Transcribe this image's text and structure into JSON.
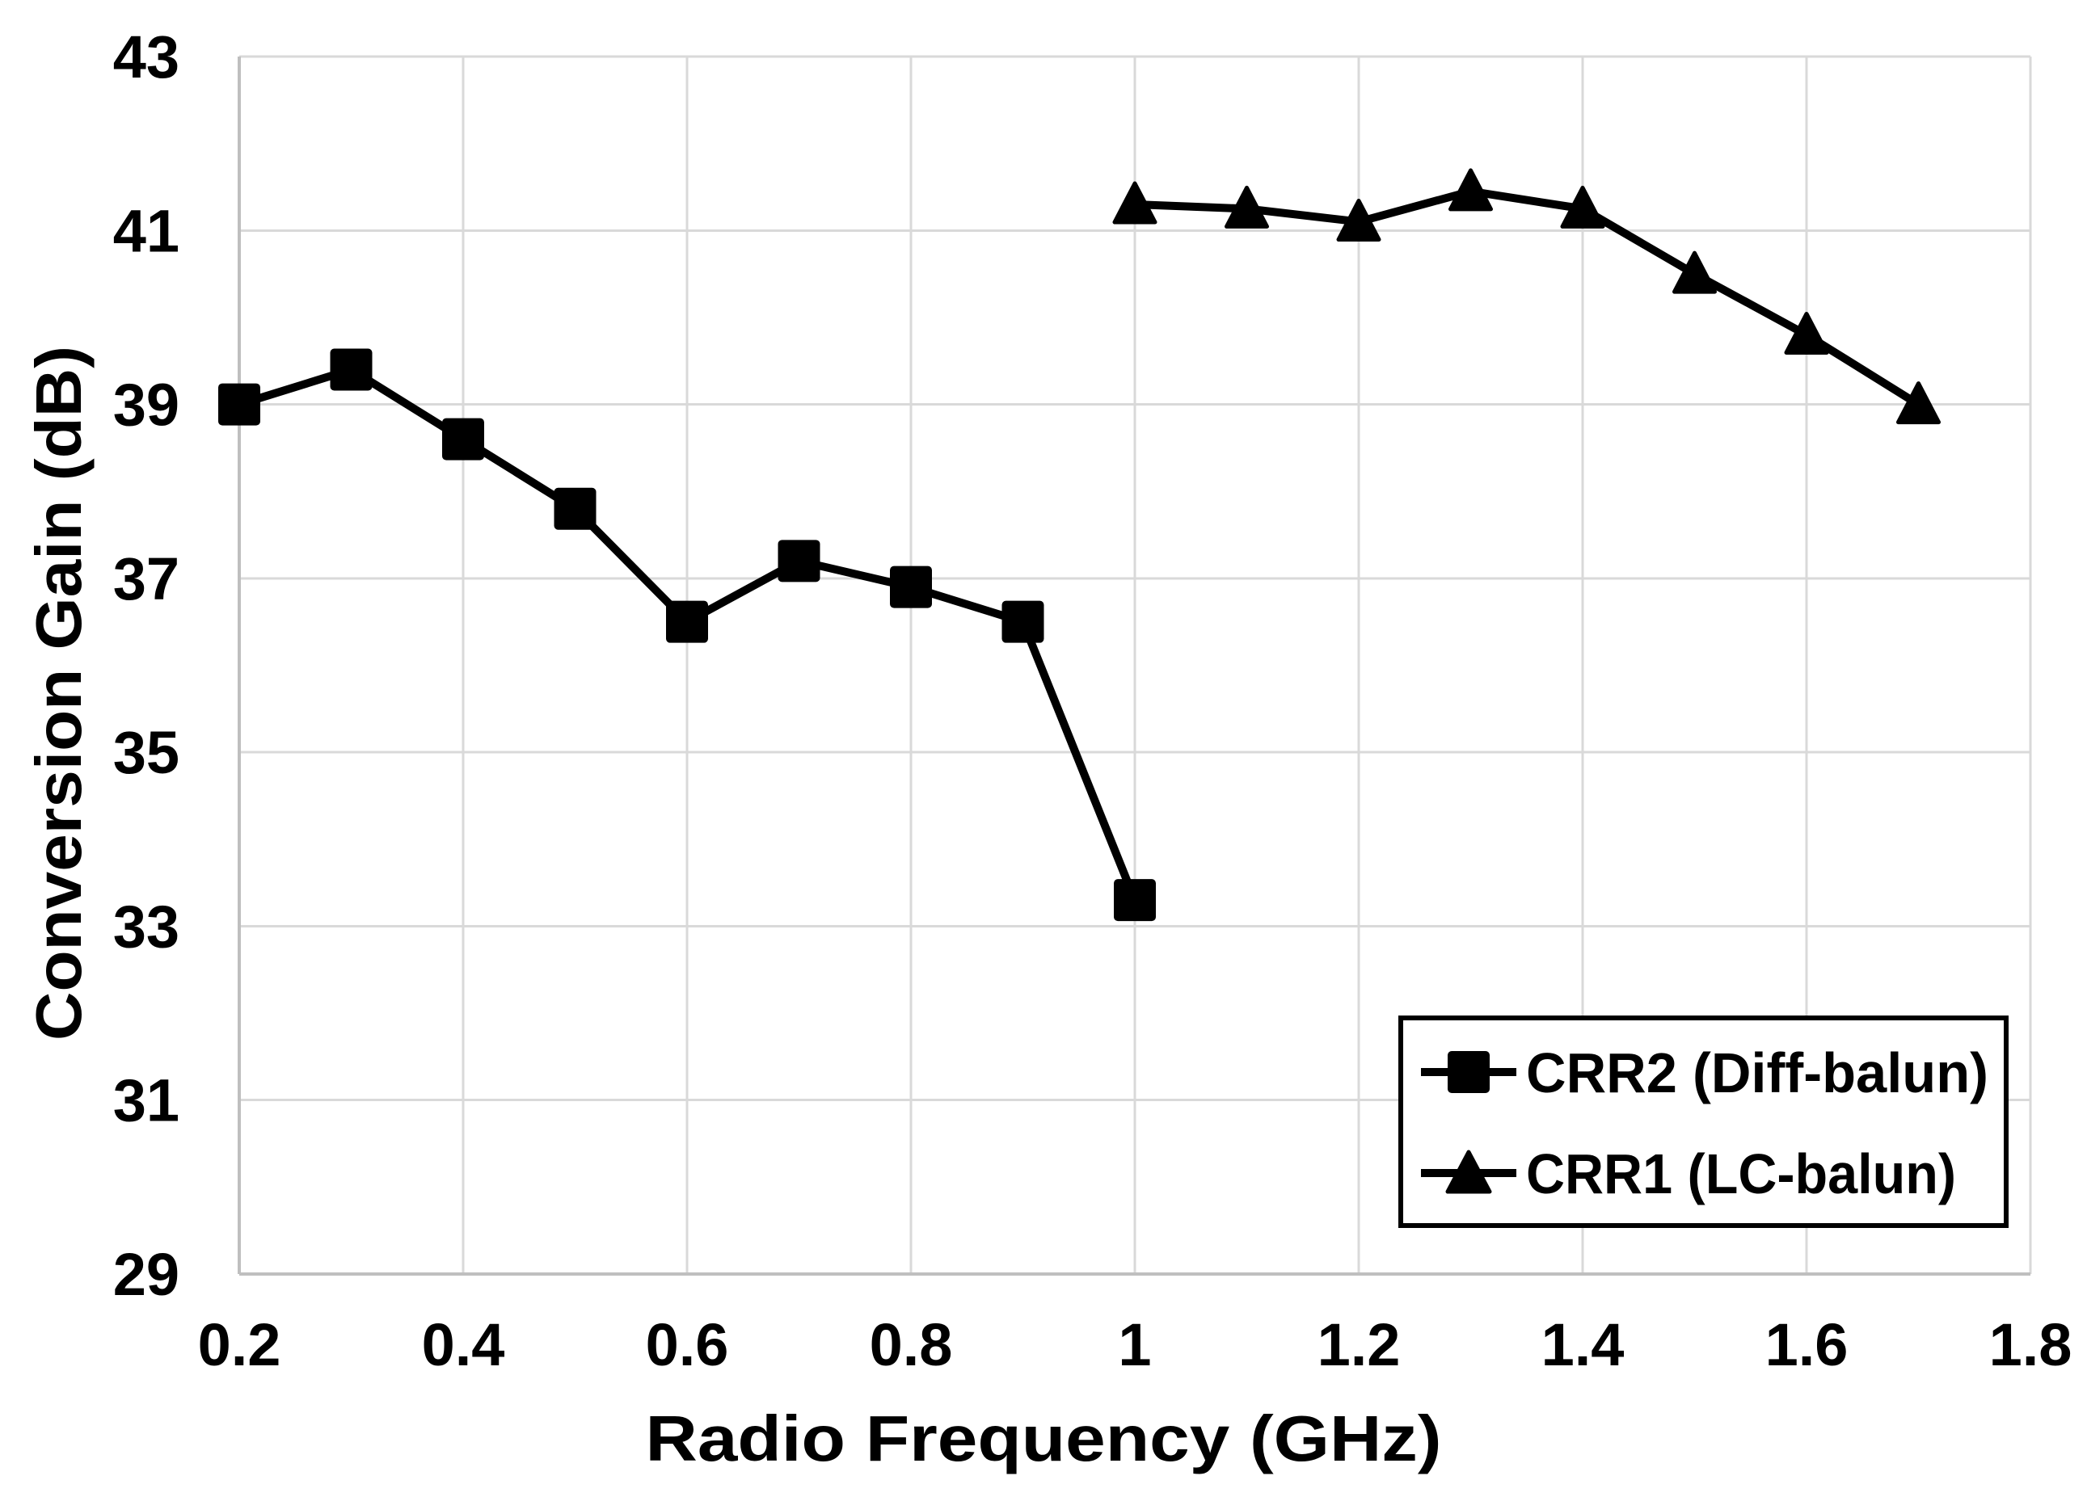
{
  "chart_data": {
    "type": "line",
    "title": "",
    "xlabel": "Radio Frequency (GHz)",
    "ylabel": "Conversion Gain (dB)",
    "xlim": [
      0.2,
      1.8
    ],
    "ylim": [
      29,
      43
    ],
    "grid": true,
    "legend_position": "bottom-right",
    "x_ticks": [
      {
        "label": "0.2",
        "value": 0.2
      },
      {
        "label": "0.4",
        "value": 0.4
      },
      {
        "label": "0.6",
        "value": 0.6
      },
      {
        "label": "0.8",
        "value": 0.8
      },
      {
        "label": "1",
        "value": 1.0
      },
      {
        "label": "1.2",
        "value": 1.2
      },
      {
        "label": "1.4",
        "value": 1.4
      },
      {
        "label": "1.6",
        "value": 1.6
      },
      {
        "label": "1.8",
        "value": 1.8
      }
    ],
    "y_ticks": [
      {
        "label": "43",
        "value": 43
      },
      {
        "label": "41",
        "value": 41
      },
      {
        "label": "39",
        "value": 39
      },
      {
        "label": "37",
        "value": 37
      },
      {
        "label": "35",
        "value": 35
      },
      {
        "label": "33",
        "value": 33
      },
      {
        "label": "31",
        "value": 31
      },
      {
        "label": "29",
        "value": 29
      }
    ],
    "series": [
      {
        "name": "CRR2 (Diff-balun)",
        "marker": "square",
        "color": "#000000",
        "x": [
          0.2,
          0.3,
          0.4,
          0.5,
          0.6,
          0.7,
          0.8,
          0.9,
          1.0
        ],
        "values": [
          39.0,
          39.4,
          38.6,
          37.8,
          36.5,
          37.2,
          36.9,
          36.5,
          33.3
        ]
      },
      {
        "name": "CRR1 (LC-balun)",
        "marker": "triangle",
        "color": "#000000",
        "x": [
          1.0,
          1.1,
          1.2,
          1.3,
          1.4,
          1.5,
          1.6,
          1.7
        ],
        "values": [
          41.3,
          41.25,
          41.1,
          41.45,
          41.25,
          40.5,
          39.8,
          39.0
        ]
      }
    ],
    "colors": {
      "line": "#000000",
      "grid": "#d9d9d9",
      "axis": "#bfbfbf",
      "text": "#000000",
      "background": "#ffffff",
      "legend_border": "#000000"
    }
  }
}
